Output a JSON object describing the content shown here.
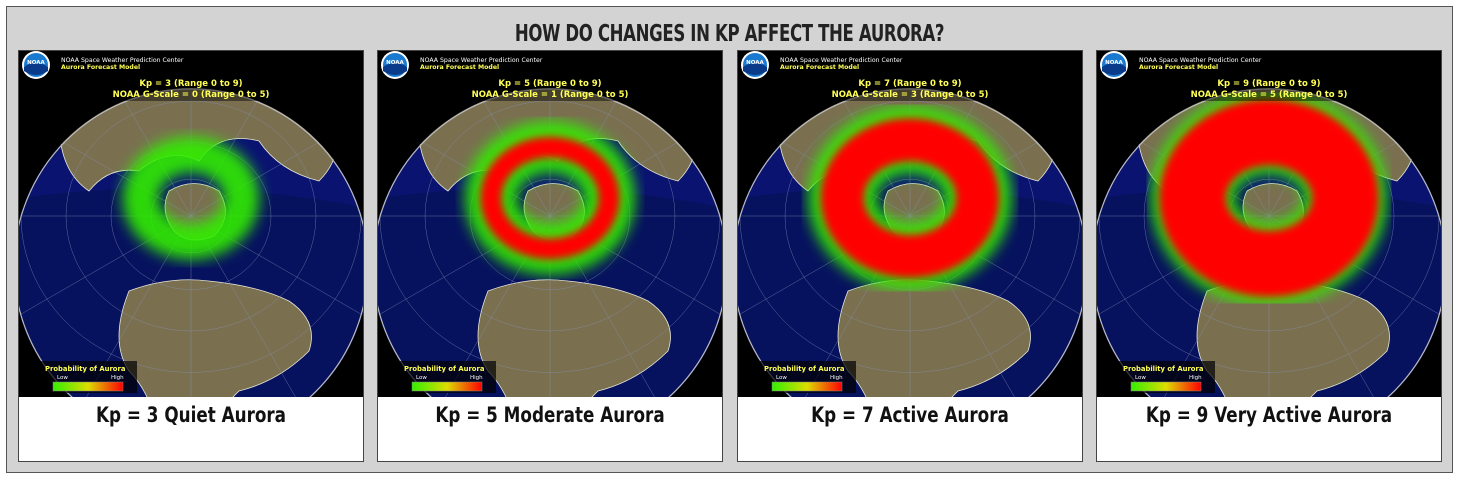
{
  "title": "HOW DO CHANGES IN KP AFFECT THE AURORA?",
  "panels": [
    {
      "caption": "Kp = 3 Quiet Aurora",
      "center_name": "NOAA Space Weather Prediction Center",
      "model": "Aurora Forecast Model",
      "kp_line": "Kp = 3 (Range 0 to 9)",
      "g_line": "NOAA G-Scale = 0 (Range 0 to 5)",
      "legend_title": "Probability of Aurora",
      "legend_low": "Low",
      "legend_high": "High",
      "logo_text": "NOAA",
      "kp": 3,
      "red_fraction": 0.15
    },
    {
      "caption": "Kp = 5 Moderate Aurora",
      "center_name": "NOAA Space Weather Prediction Center",
      "model": "Aurora Forecast Model",
      "kp_line": "Kp = 5 (Range 0 to 9)",
      "g_line": "NOAA G-Scale = 1 (Range 0 to 5)",
      "legend_title": "Probability of Aurora",
      "legend_low": "Low",
      "legend_high": "High",
      "logo_text": "NOAA",
      "kp": 5,
      "red_fraction": 0.55
    },
    {
      "caption": "Kp = 7 Active Aurora",
      "center_name": "NOAA Space Weather Prediction Center",
      "model": "Aurora Forecast Model",
      "kp_line": "Kp = 7 (Range 0 to 9)",
      "g_line": "NOAA G-Scale = 3 (Range 0 to 5)",
      "legend_title": "Probability of Aurora",
      "legend_low": "Low",
      "legend_high": "High",
      "logo_text": "NOAA",
      "kp": 7,
      "red_fraction": 0.8
    },
    {
      "caption": "Kp = 9 Very Active Aurora",
      "center_name": "NOAA Space Weather Prediction Center",
      "model": "Aurora Forecast Model",
      "kp_line": "Kp = 9 (Range 0 to 9)",
      "g_line": "NOAA G-Scale = 5 (Range 0 to 5)",
      "legend_title": "Probability of Aurora",
      "legend_low": "Low",
      "legend_high": "High",
      "logo_text": "NOAA",
      "kp": 9,
      "red_fraction": 0.95
    }
  ],
  "colors": {
    "ocean": "#0a1470",
    "night_ocean": "#061050",
    "land": "#7a7050",
    "aurora_low": "#33ee00",
    "aurora_high": "#ff0000",
    "header_text": "#ffff55"
  }
}
